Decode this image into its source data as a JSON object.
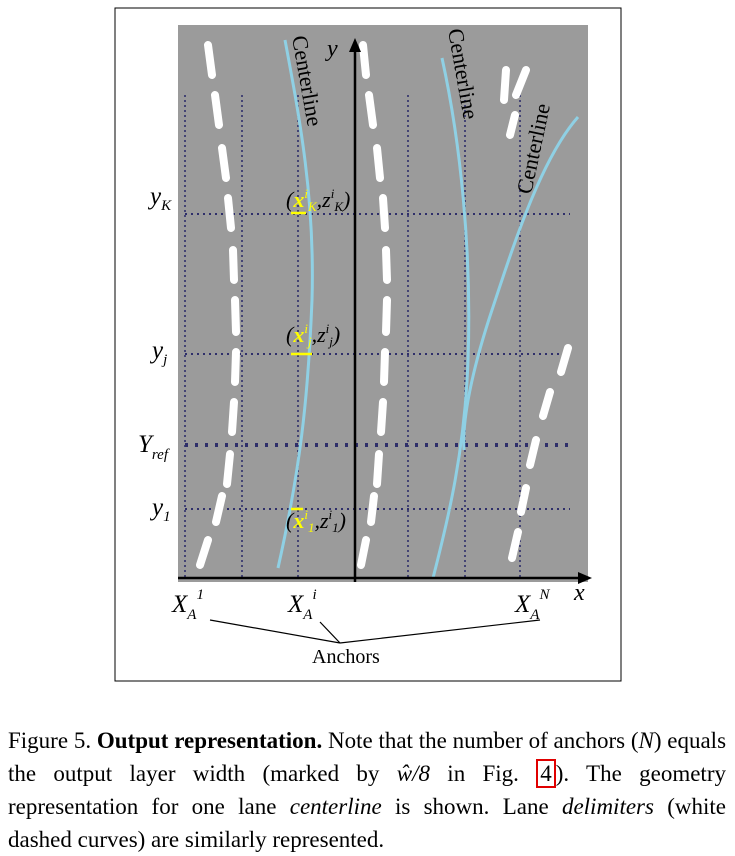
{
  "figure": {
    "axis_x_label": "x",
    "axis_y_label": "y",
    "centerline_labels": [
      "Centerline",
      "Centerline",
      "Centerline"
    ],
    "y_labels": {
      "yK": {
        "main": "y",
        "sub": "K"
      },
      "yj": {
        "main": "y",
        "sub": "j"
      },
      "yref": {
        "main": "Y",
        "sub": "ref"
      },
      "y1": {
        "main": "y",
        "sub": "1"
      }
    },
    "points": {
      "K": {
        "x": "x",
        "sup": "i",
        "sub": "K",
        "z": "z",
        "zsup": "i",
        "zsub": "K"
      },
      "j": {
        "x": "x",
        "sup": "i",
        "sub": "j",
        "z": "z",
        "zsup": "i",
        "zsub": "j"
      },
      "one": {
        "x": "x",
        "sup": "i",
        "sub": "1",
        "z": "z",
        "zsup": "i",
        "zsub": "1"
      }
    },
    "anchors": [
      {
        "main": "X",
        "sub": "A",
        "sup": "1"
      },
      {
        "main": "X",
        "sub": "A",
        "sup": "i"
      },
      {
        "main": "X",
        "sub": "A",
        "sup": "N"
      }
    ],
    "anchors_label": "Anchors",
    "colors": {
      "background": "#9b9b9b",
      "centerline": "#8fd0e4",
      "delimiter": "#ffffff",
      "grid": "#2f2f6a",
      "highlight": "#ffff00"
    }
  },
  "caption": {
    "fig_label": "Figure 5.",
    "bold_title": "Output representation.",
    "text_1": " Note that the number of anchors (",
    "N": "N",
    "text_2": ") equals the output layer width (marked by ",
    "w_expr": "ŵ/8",
    "text_3": " in Fig. ",
    "fig_ref": "4",
    "text_4": "). The geometry representation for one lane ",
    "centerline_word": "centerline",
    "text_5": " is shown. Lane ",
    "delimiters_word": "delimiters",
    "text_6": " (white dashed curves) are similarly represented."
  }
}
